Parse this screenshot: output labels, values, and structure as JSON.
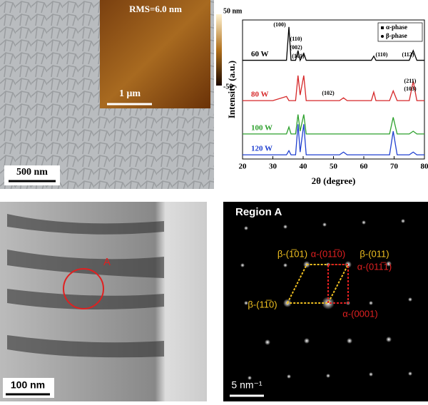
{
  "sem": {
    "scale_bar": "500 nm"
  },
  "afm": {
    "rms": "RMS=6.0 nm",
    "scale_bar": "1 μm",
    "colorbar_max": "50 nm",
    "colorbar_min": "-50"
  },
  "chart_data": {
    "type": "line",
    "xlabel": "2θ (degree)",
    "ylabel": "Intensity (a.u.)",
    "x": [
      20,
      25,
      30,
      34.5,
      35.3,
      36,
      37.5,
      38.3,
      39,
      40.2,
      41,
      45,
      50,
      52,
      53.3,
      54.5,
      60,
      62.5,
      63.3,
      64,
      68.5,
      69.7,
      71,
      75,
      76.3,
      77.5,
      80
    ],
    "series": [
      {
        "name": "60 W",
        "color": "#000000",
        "values": [
          71,
          71,
          71,
          71,
          95,
          71,
          71,
          78,
          71,
          76,
          71,
          71,
          71,
          71,
          71,
          71,
          71,
          71,
          74,
          71,
          71,
          71,
          71,
          71,
          78,
          71,
          71
        ]
      },
      {
        "name": "80 W",
        "color": "#d62728",
        "values": [
          42,
          42,
          42,
          45,
          42,
          42,
          42,
          60,
          46,
          60,
          42,
          42,
          42,
          42,
          44,
          42,
          42,
          42,
          48,
          42,
          42,
          49,
          42,
          42,
          56,
          42,
          42
        ]
      },
      {
        "name": "100 W",
        "color": "#2ca02c",
        "values": [
          18,
          18,
          18,
          18,
          23,
          18,
          18,
          32,
          20,
          32,
          18,
          18,
          18,
          18,
          18,
          18,
          18,
          18,
          18,
          18,
          18,
          30,
          18,
          18,
          20,
          18,
          18
        ]
      },
      {
        "name": "120 W",
        "color": "#1f3fd0",
        "values": [
          3,
          3,
          3,
          3,
          6,
          3,
          3,
          25,
          5,
          25,
          3,
          3,
          3,
          3,
          5,
          3,
          3,
          3,
          3,
          3,
          3,
          20,
          3,
          3,
          5,
          3,
          3
        ]
      }
    ],
    "xlim": [
      20,
      80
    ],
    "xticks": [
      20,
      30,
      40,
      50,
      60,
      70,
      80
    ],
    "ylim": [
      0,
      100
    ],
    "phase_legend": [
      "α-phase",
      "β-phase"
    ],
    "annotations": [
      "(100)",
      "(110)",
      "(002)",
      "(101)",
      "(110)",
      "(112)",
      "(102)",
      "(211)",
      "(103)"
    ]
  },
  "tem": {
    "scale_bar": "100 nm",
    "marker": "A"
  },
  "saed": {
    "title": "Region A",
    "scale_bar": "5 nm⁻¹",
    "labels": [
      "β-(1̅01)",
      "α-(011̅0)",
      "β-(011)",
      "α-(011̅1)",
      "β-(11̅0)",
      "α-(0001)"
    ]
  }
}
